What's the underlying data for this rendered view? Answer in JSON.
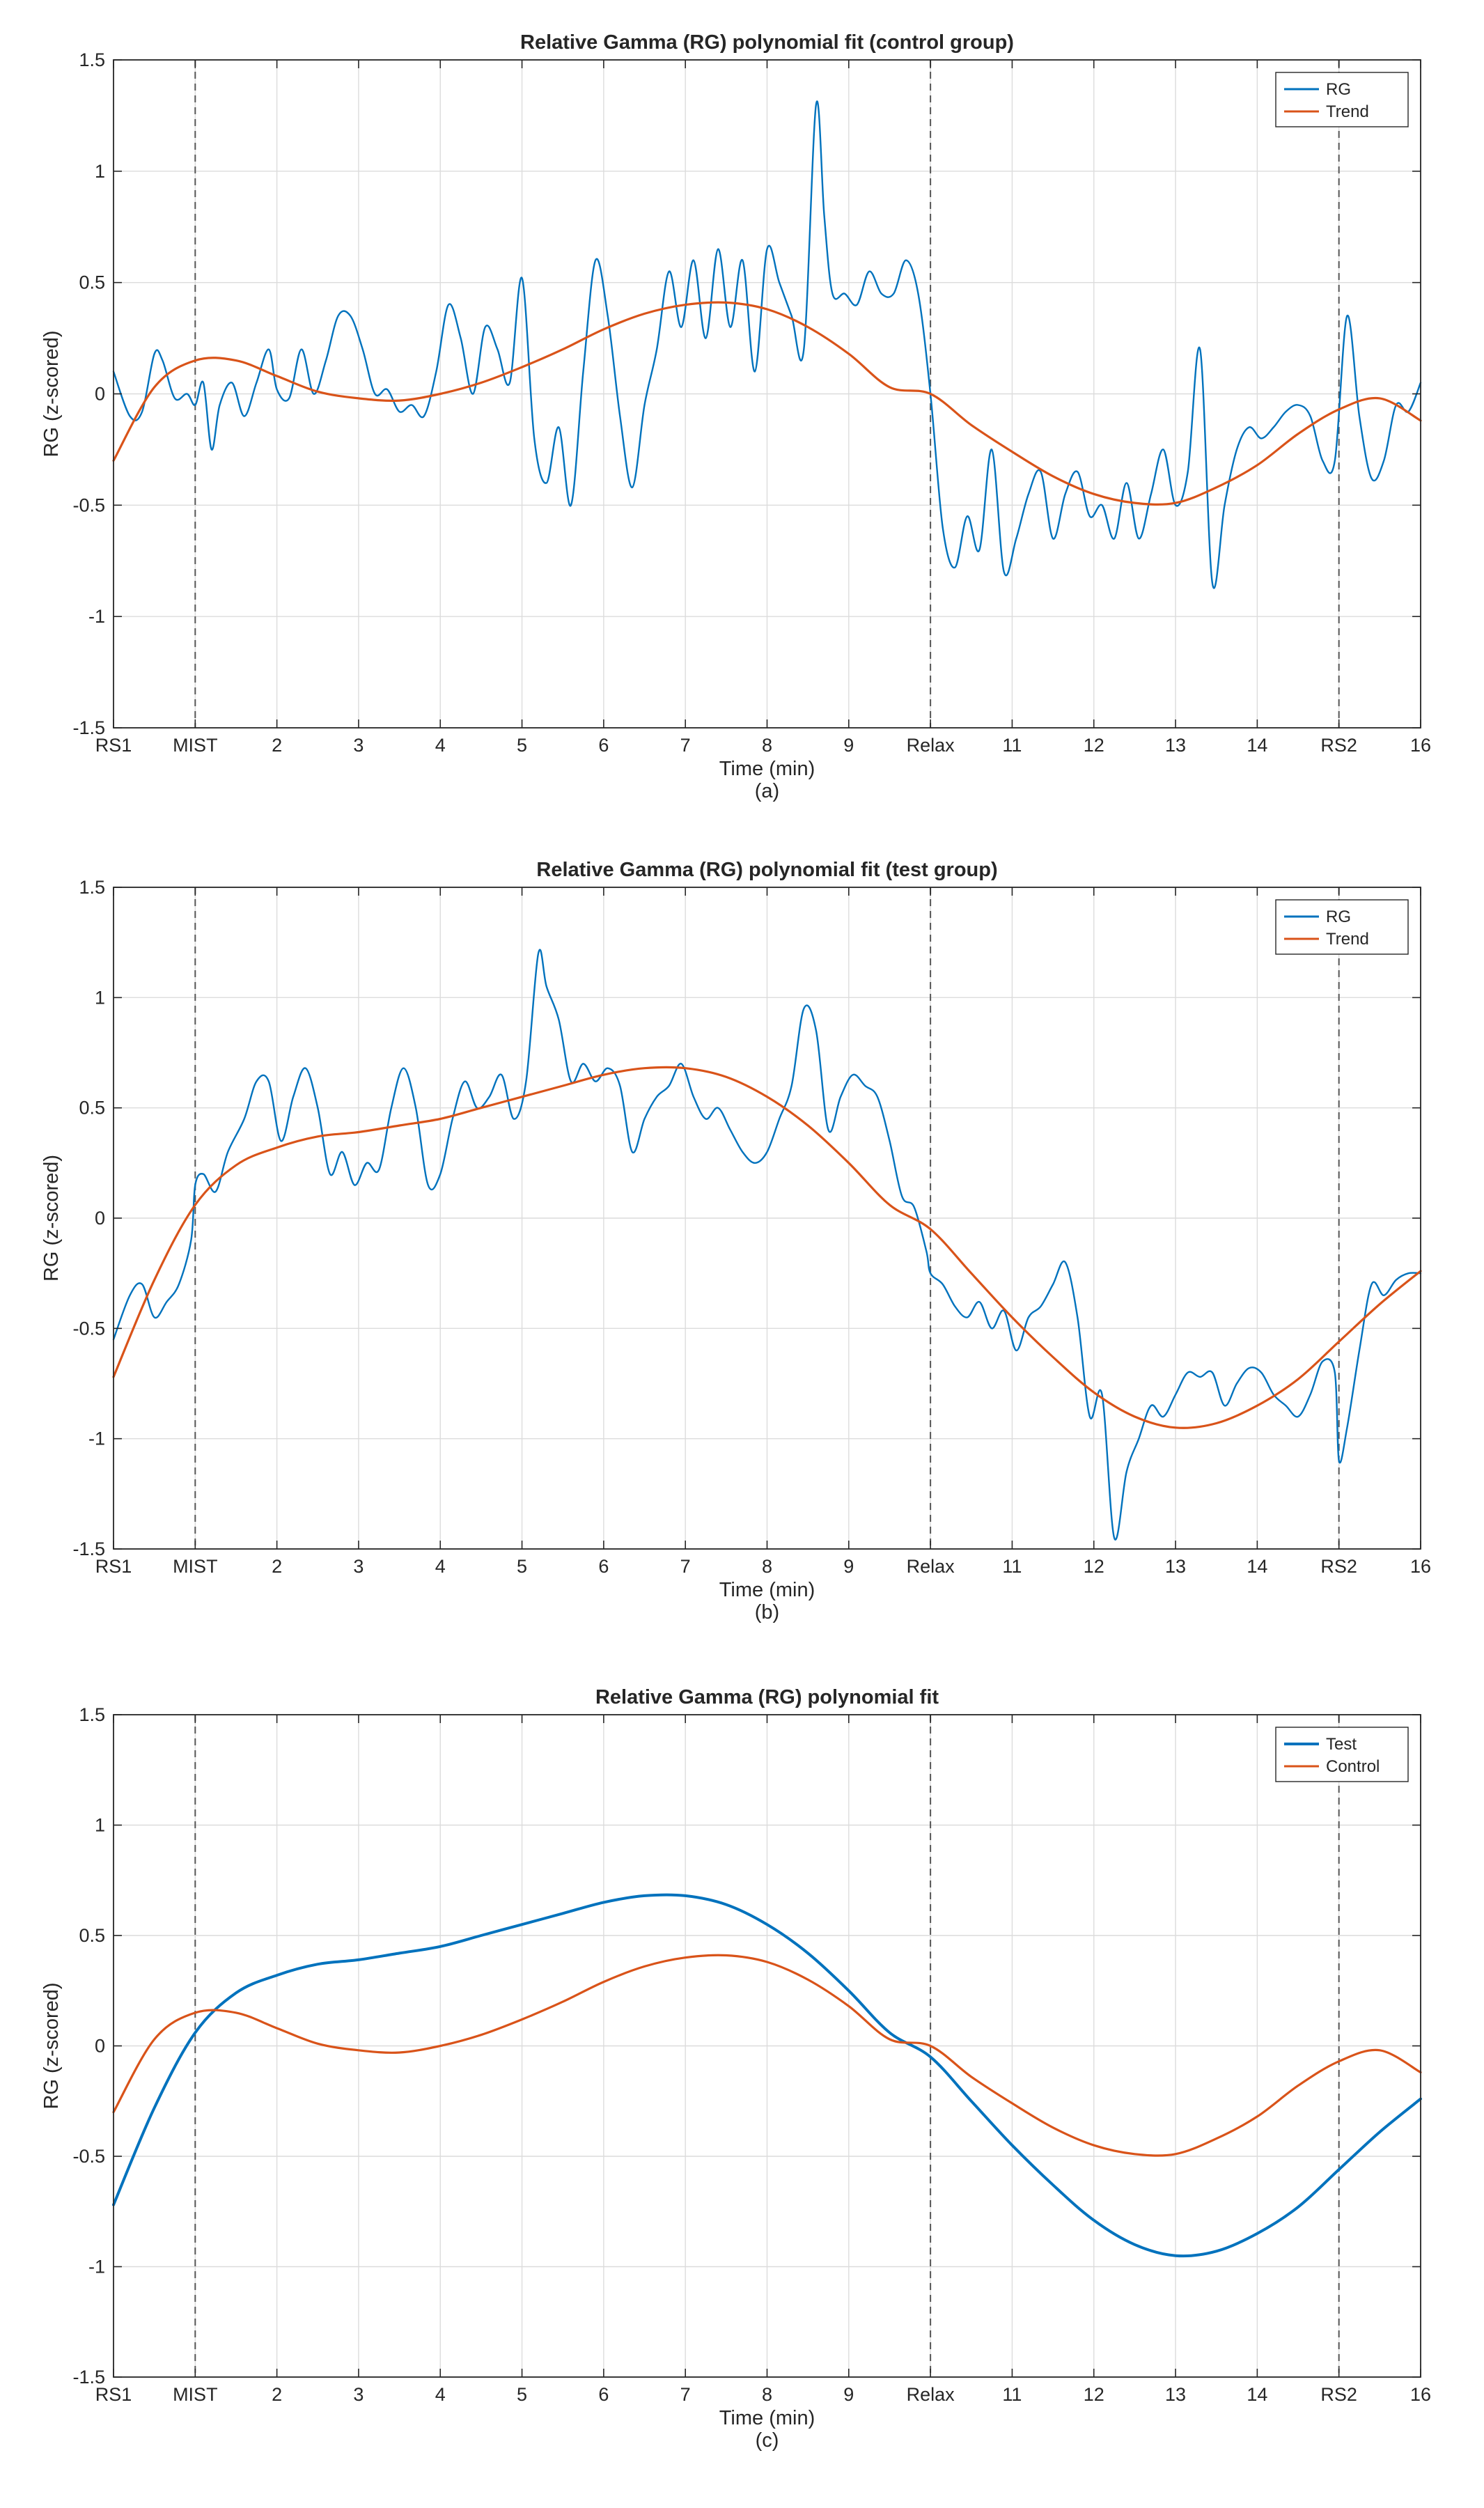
{
  "chart_data": [
    {
      "type": "line",
      "id": "a",
      "title": "Relative Gamma (RG) polynomial fit (control group)",
      "xlabel": "Time (min)",
      "ylabel": "RG (z-scored)",
      "sublabel": "(a)",
      "xlim": [
        0,
        16
      ],
      "ylim": [
        -1.5,
        1.5
      ],
      "grid": true,
      "legend_position": "top-right",
      "x_ticks": [
        {
          "value": 0,
          "label": "RS1"
        },
        {
          "value": 1,
          "label": "MIST"
        },
        {
          "value": 2,
          "label": "2"
        },
        {
          "value": 3,
          "label": "3"
        },
        {
          "value": 4,
          "label": "4"
        },
        {
          "value": 5,
          "label": "5"
        },
        {
          "value": 6,
          "label": "6"
        },
        {
          "value": 7,
          "label": "7"
        },
        {
          "value": 8,
          "label": "8"
        },
        {
          "value": 9,
          "label": "9"
        },
        {
          "value": 10,
          "label": "Relax"
        },
        {
          "value": 11,
          "label": "11"
        },
        {
          "value": 12,
          "label": "12"
        },
        {
          "value": 13,
          "label": "13"
        },
        {
          "value": 14,
          "label": "14"
        },
        {
          "value": 15,
          "label": "RS2"
        },
        {
          "value": 16,
          "label": "16"
        }
      ],
      "y_ticks": [
        {
          "value": -1.5,
          "label": "-1.5"
        },
        {
          "value": -1,
          "label": "-1"
        },
        {
          "value": -0.5,
          "label": "-0.5"
        },
        {
          "value": 0,
          "label": "0"
        },
        {
          "value": 0.5,
          "label": "0.5"
        },
        {
          "value": 1,
          "label": "1"
        },
        {
          "value": 1.5,
          "label": "1.5"
        }
      ],
      "phase_markers": [
        1,
        10,
        15
      ],
      "series": [
        {
          "name": "RG",
          "color": "#0072bd",
          "kind": "raw",
          "x": [
            0,
            0.2,
            0.35,
            0.5,
            0.6,
            0.75,
            0.9,
            1.0,
            1.1,
            1.2,
            1.3,
            1.45,
            1.6,
            1.75,
            1.9,
            2.0,
            2.15,
            2.3,
            2.45,
            2.6,
            2.75,
            2.9,
            3.05,
            3.2,
            3.35,
            3.5,
            3.65,
            3.8,
            3.95,
            4.1,
            4.25,
            4.4,
            4.55,
            4.7,
            4.85,
            5.0,
            5.15,
            5.3,
            5.45,
            5.6,
            5.75,
            5.9,
            6.05,
            6.2,
            6.35,
            6.5,
            6.65,
            6.8,
            6.95,
            7.1,
            7.25,
            7.4,
            7.55,
            7.7,
            7.85,
            8.0,
            8.15,
            8.3,
            8.45,
            8.6,
            8.7,
            8.8,
            8.95,
            9.1,
            9.25,
            9.4,
            9.55,
            9.7,
            9.85,
            10.0,
            10.15,
            10.3,
            10.45,
            10.6,
            10.75,
            10.9,
            11.05,
            11.2,
            11.35,
            11.5,
            11.65,
            11.8,
            11.95,
            12.1,
            12.25,
            12.4,
            12.55,
            12.7,
            12.85,
            13.0,
            13.15,
            13.3,
            13.45,
            13.6,
            13.75,
            13.9,
            14.05,
            14.2,
            14.35,
            14.5,
            14.65,
            14.8,
            14.95,
            15.1,
            15.25,
            15.4,
            15.55,
            15.7,
            15.85,
            16.0
          ],
          "y": [
            0.1,
            -0.1,
            -0.08,
            0.18,
            0.15,
            -0.02,
            0.0,
            -0.05,
            0.05,
            -0.25,
            -0.05,
            0.05,
            -0.1,
            0.05,
            0.2,
            0.02,
            -0.02,
            0.2,
            0.0,
            0.15,
            0.35,
            0.35,
            0.2,
            0.0,
            0.02,
            -0.08,
            -0.05,
            -0.1,
            0.1,
            0.4,
            0.25,
            0.0,
            0.3,
            0.2,
            0.05,
            0.52,
            -0.2,
            -0.4,
            -0.15,
            -0.5,
            0.1,
            0.6,
            0.35,
            -0.1,
            -0.42,
            -0.05,
            0.2,
            0.55,
            0.3,
            0.6,
            0.25,
            0.65,
            0.3,
            0.6,
            0.1,
            0.65,
            0.5,
            0.35,
            0.2,
            1.3,
            0.8,
            0.45,
            0.45,
            0.4,
            0.55,
            0.45,
            0.45,
            0.6,
            0.45,
            0.0,
            -0.6,
            -0.78,
            -0.55,
            -0.7,
            -0.25,
            -0.8,
            -0.65,
            -0.45,
            -0.35,
            -0.65,
            -0.45,
            -0.35,
            -0.55,
            -0.5,
            -0.65,
            -0.4,
            -0.65,
            -0.45,
            -0.25,
            -0.5,
            -0.35,
            0.2,
            -0.85,
            -0.5,
            -0.25,
            -0.15,
            -0.2,
            -0.15,
            -0.08,
            -0.05,
            -0.1,
            -0.3,
            -0.3,
            0.35,
            -0.1,
            -0.38,
            -0.3,
            -0.05,
            -0.08,
            0.05
          ]
        },
        {
          "name": "Trend",
          "color": "#d95319",
          "kind": "trend",
          "x": [
            0,
            0.5,
            1,
            1.5,
            2,
            2.5,
            3,
            3.5,
            4,
            4.5,
            5,
            5.5,
            6,
            6.5,
            7,
            7.5,
            8,
            8.5,
            9,
            9.5,
            10,
            10.5,
            11,
            11.5,
            12,
            12.5,
            13,
            13.5,
            14,
            14.5,
            15,
            15.5,
            16
          ],
          "y": [
            -0.3,
            0.03,
            0.15,
            0.15,
            0.08,
            0.01,
            -0.02,
            -0.03,
            0.0,
            0.05,
            0.12,
            0.2,
            0.29,
            0.36,
            0.4,
            0.41,
            0.38,
            0.3,
            0.18,
            0.03,
            0.0,
            -0.14,
            -0.26,
            -0.37,
            -0.45,
            -0.49,
            -0.49,
            -0.42,
            -0.32,
            -0.18,
            -0.07,
            -0.02,
            -0.12
          ]
        }
      ]
    },
    {
      "type": "line",
      "id": "b",
      "title": "Relative Gamma (RG) polynomial fit (test group)",
      "xlabel": "Time (min)",
      "ylabel": "RG (z-scored)",
      "sublabel": "(b)",
      "xlim": [
        0,
        16
      ],
      "ylim": [
        -1.5,
        1.5
      ],
      "grid": true,
      "legend_position": "top-right",
      "x_ticks": [
        {
          "value": 0,
          "label": "RS1"
        },
        {
          "value": 1,
          "label": "MIST"
        },
        {
          "value": 2,
          "label": "2"
        },
        {
          "value": 3,
          "label": "3"
        },
        {
          "value": 4,
          "label": "4"
        },
        {
          "value": 5,
          "label": "5"
        },
        {
          "value": 6,
          "label": "6"
        },
        {
          "value": 7,
          "label": "7"
        },
        {
          "value": 8,
          "label": "8"
        },
        {
          "value": 9,
          "label": "9"
        },
        {
          "value": 10,
          "label": "Relax"
        },
        {
          "value": 11,
          "label": "11"
        },
        {
          "value": 12,
          "label": "12"
        },
        {
          "value": 13,
          "label": "13"
        },
        {
          "value": 14,
          "label": "14"
        },
        {
          "value": 15,
          "label": "RS2"
        },
        {
          "value": 16,
          "label": "16"
        }
      ],
      "y_ticks": [
        {
          "value": -1.5,
          "label": "-1.5"
        },
        {
          "value": -1,
          "label": "-1"
        },
        {
          "value": -0.5,
          "label": "-0.5"
        },
        {
          "value": 0,
          "label": "0"
        },
        {
          "value": 0.5,
          "label": "0.5"
        },
        {
          "value": 1,
          "label": "1"
        },
        {
          "value": 1.5,
          "label": "1.5"
        }
      ],
      "phase_markers": [
        1,
        10,
        15
      ],
      "series": [
        {
          "name": "RG",
          "color": "#0072bd",
          "kind": "raw",
          "x": [
            0,
            0.2,
            0.35,
            0.5,
            0.65,
            0.8,
            0.95,
            1.0,
            1.1,
            1.25,
            1.4,
            1.6,
            1.75,
            1.9,
            2.05,
            2.2,
            2.35,
            2.5,
            2.65,
            2.8,
            2.95,
            3.1,
            3.25,
            3.4,
            3.55,
            3.7,
            3.85,
            4.0,
            4.15,
            4.3,
            4.45,
            4.6,
            4.75,
            4.9,
            5.05,
            5.2,
            5.3,
            5.45,
            5.6,
            5.75,
            5.9,
            6.05,
            6.2,
            6.35,
            6.5,
            6.65,
            6.8,
            6.95,
            7.1,
            7.25,
            7.4,
            7.55,
            7.7,
            7.85,
            8.0,
            8.15,
            8.3,
            8.45,
            8.6,
            8.75,
            8.9,
            9.05,
            9.2,
            9.35,
            9.5,
            9.65,
            9.8,
            9.95,
            10.0,
            10.15,
            10.3,
            10.45,
            10.6,
            10.75,
            10.9,
            11.05,
            11.2,
            11.35,
            11.5,
            11.65,
            11.8,
            11.95,
            12.1,
            12.25,
            12.4,
            12.55,
            12.7,
            12.85,
            13.0,
            13.15,
            13.3,
            13.45,
            13.6,
            13.75,
            13.9,
            14.05,
            14.2,
            14.35,
            14.5,
            14.65,
            14.8,
            14.95,
            15.0,
            15.1,
            15.25,
            15.4,
            15.55,
            15.7,
            15.85,
            16.0
          ],
          "y": [
            -0.55,
            -0.35,
            -0.3,
            -0.45,
            -0.38,
            -0.3,
            -0.1,
            0.15,
            0.2,
            0.12,
            0.3,
            0.45,
            0.62,
            0.62,
            0.35,
            0.55,
            0.68,
            0.5,
            0.2,
            0.3,
            0.15,
            0.25,
            0.22,
            0.5,
            0.68,
            0.5,
            0.15,
            0.2,
            0.45,
            0.62,
            0.5,
            0.55,
            0.65,
            0.45,
            0.62,
            1.2,
            1.05,
            0.9,
            0.62,
            0.7,
            0.62,
            0.68,
            0.6,
            0.3,
            0.45,
            0.55,
            0.6,
            0.7,
            0.55,
            0.45,
            0.5,
            0.4,
            0.3,
            0.25,
            0.3,
            0.45,
            0.6,
            0.95,
            0.85,
            0.4,
            0.55,
            0.65,
            0.6,
            0.55,
            0.35,
            0.1,
            0.05,
            -0.15,
            -0.25,
            -0.3,
            -0.4,
            -0.45,
            -0.38,
            -0.5,
            -0.42,
            -0.6,
            -0.45,
            -0.4,
            -0.3,
            -0.2,
            -0.45,
            -0.9,
            -0.8,
            -1.45,
            -1.15,
            -1.0,
            -0.85,
            -0.9,
            -0.8,
            -0.7,
            -0.72,
            -0.7,
            -0.85,
            -0.75,
            -0.68,
            -0.7,
            -0.8,
            -0.85,
            -0.9,
            -0.8,
            -0.65,
            -0.7,
            -1.1,
            -0.95,
            -0.6,
            -0.3,
            -0.35,
            -0.28,
            -0.25,
            -0.25
          ]
        },
        {
          "name": "Trend",
          "color": "#d95319",
          "kind": "trend",
          "x": [
            0,
            0.5,
            1,
            1.5,
            2,
            2.5,
            3,
            3.5,
            4,
            4.5,
            5,
            5.5,
            6,
            6.5,
            7,
            7.5,
            8,
            8.5,
            9,
            9.5,
            10,
            10.5,
            11,
            11.5,
            12,
            12.5,
            13,
            13.5,
            14,
            14.5,
            15,
            15.5,
            16
          ],
          "y": [
            -0.72,
            -0.28,
            0.06,
            0.24,
            0.32,
            0.37,
            0.39,
            0.42,
            0.45,
            0.5,
            0.55,
            0.6,
            0.65,
            0.68,
            0.68,
            0.64,
            0.55,
            0.42,
            0.25,
            0.06,
            -0.05,
            -0.25,
            -0.45,
            -0.63,
            -0.79,
            -0.9,
            -0.95,
            -0.93,
            -0.85,
            -0.73,
            -0.56,
            -0.39,
            -0.24
          ]
        }
      ]
    },
    {
      "type": "line",
      "id": "c",
      "title": "Relative Gamma (RG) polynomial fit",
      "xlabel": "Time (min)",
      "ylabel": "RG (z-scored)",
      "sublabel": "(c)",
      "xlim": [
        0,
        16
      ],
      "ylim": [
        -1.5,
        1.5
      ],
      "grid": true,
      "legend_position": "top-right",
      "x_ticks": [
        {
          "value": 0,
          "label": "RS1"
        },
        {
          "value": 1,
          "label": "MIST"
        },
        {
          "value": 2,
          "label": "2"
        },
        {
          "value": 3,
          "label": "3"
        },
        {
          "value": 4,
          "label": "4"
        },
        {
          "value": 5,
          "label": "5"
        },
        {
          "value": 6,
          "label": "6"
        },
        {
          "value": 7,
          "label": "7"
        },
        {
          "value": 8,
          "label": "8"
        },
        {
          "value": 9,
          "label": "9"
        },
        {
          "value": 10,
          "label": "Relax"
        },
        {
          "value": 11,
          "label": "11"
        },
        {
          "value": 12,
          "label": "12"
        },
        {
          "value": 13,
          "label": "13"
        },
        {
          "value": 14,
          "label": "14"
        },
        {
          "value": 15,
          "label": "RS2"
        },
        {
          "value": 16,
          "label": "16"
        }
      ],
      "y_ticks": [
        {
          "value": -1.5,
          "label": "-1.5"
        },
        {
          "value": -1,
          "label": "-1"
        },
        {
          "value": -0.5,
          "label": "-0.5"
        },
        {
          "value": 0,
          "label": "0"
        },
        {
          "value": 0.5,
          "label": "0.5"
        },
        {
          "value": 1,
          "label": "1"
        },
        {
          "value": 1.5,
          "label": "1.5"
        }
      ],
      "phase_markers": [
        1,
        10,
        15
      ],
      "series": [
        {
          "name": "Test",
          "color": "#0072bd",
          "kind": "trend-bold",
          "x": [
            0,
            0.5,
            1,
            1.5,
            2,
            2.5,
            3,
            3.5,
            4,
            4.5,
            5,
            5.5,
            6,
            6.5,
            7,
            7.5,
            8,
            8.5,
            9,
            9.5,
            10,
            10.5,
            11,
            11.5,
            12,
            12.5,
            13,
            13.5,
            14,
            14.5,
            15,
            15.5,
            16
          ],
          "y": [
            -0.72,
            -0.28,
            0.06,
            0.24,
            0.32,
            0.37,
            0.39,
            0.42,
            0.45,
            0.5,
            0.55,
            0.6,
            0.65,
            0.68,
            0.68,
            0.64,
            0.55,
            0.42,
            0.25,
            0.06,
            -0.05,
            -0.25,
            -0.45,
            -0.63,
            -0.79,
            -0.9,
            -0.95,
            -0.93,
            -0.85,
            -0.73,
            -0.56,
            -0.39,
            -0.24
          ]
        },
        {
          "name": "Control",
          "color": "#d95319",
          "kind": "trend",
          "x": [
            0,
            0.5,
            1,
            1.5,
            2,
            2.5,
            3,
            3.5,
            4,
            4.5,
            5,
            5.5,
            6,
            6.5,
            7,
            7.5,
            8,
            8.5,
            9,
            9.5,
            10,
            10.5,
            11,
            11.5,
            12,
            12.5,
            13,
            13.5,
            14,
            14.5,
            15,
            15.5,
            16
          ],
          "y": [
            -0.3,
            0.03,
            0.15,
            0.15,
            0.08,
            0.01,
            -0.02,
            -0.03,
            0.0,
            0.05,
            0.12,
            0.2,
            0.29,
            0.36,
            0.4,
            0.41,
            0.38,
            0.3,
            0.18,
            0.03,
            0.0,
            -0.14,
            -0.26,
            -0.37,
            -0.45,
            -0.49,
            -0.49,
            -0.42,
            -0.32,
            -0.18,
            -0.07,
            -0.02,
            -0.12
          ]
        }
      ]
    }
  ]
}
